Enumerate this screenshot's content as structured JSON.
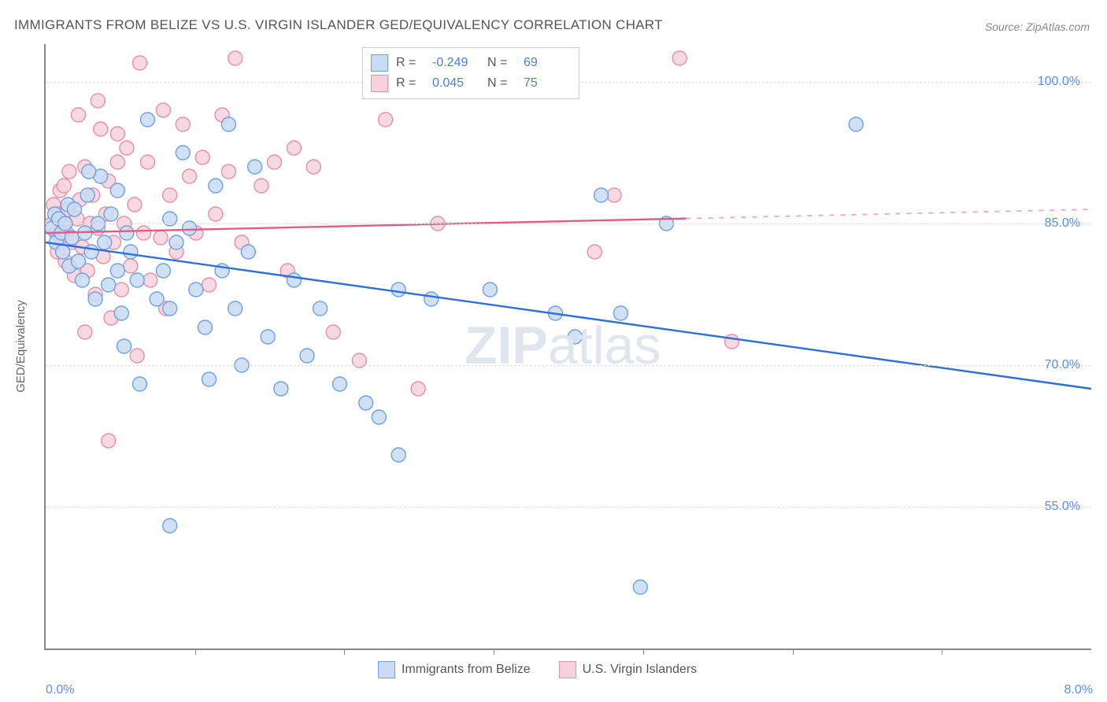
{
  "title": "IMMIGRANTS FROM BELIZE VS U.S. VIRGIN ISLANDER GED/EQUIVALENCY CORRELATION CHART",
  "source_label": "Source: ZipAtlas.com",
  "y_axis_label": "GED/Equivalency",
  "watermark": {
    "bold": "ZIP",
    "rest": "atlas"
  },
  "chart": {
    "type": "scatter-with-regression",
    "background_color": "#ffffff",
    "grid_color": "#dddddd",
    "axis_color": "#888888",
    "xlim": [
      0.0,
      8.0
    ],
    "ylim": [
      40.0,
      104.0
    ],
    "x_ticks_minor_count": 6,
    "x_tick_labels": {
      "left": "0.0%",
      "right": "8.0%"
    },
    "y_ticks": [
      {
        "value": 55.0,
        "label": "55.0%"
      },
      {
        "value": 70.0,
        "label": "70.0%"
      },
      {
        "value": 85.0,
        "label": "85.0%"
      },
      {
        "value": 100.0,
        "label": "100.0%"
      }
    ],
    "marker_radius": 9,
    "marker_stroke_width": 1.4,
    "line_width": 2.4,
    "series": [
      {
        "key": "belize",
        "label": "Immigrants from Belize",
        "fill": "#c9dcf3",
        "stroke": "#6fa0e2",
        "line_color": "#2f6fd9",
        "r_value": "-0.249",
        "n_value": "69",
        "regression": {
          "x1": 0.0,
          "y1": 83.0,
          "x2": 8.0,
          "y2": 67.5,
          "solid_until_x": 8.0
        },
        "points": [
          [
            0.05,
            84.5
          ],
          [
            0.07,
            86.0
          ],
          [
            0.08,
            83.0
          ],
          [
            0.1,
            85.5
          ],
          [
            0.12,
            84.0
          ],
          [
            0.13,
            82.0
          ],
          [
            0.15,
            85.0
          ],
          [
            0.17,
            87.0
          ],
          [
            0.18,
            80.5
          ],
          [
            0.2,
            83.5
          ],
          [
            0.22,
            86.5
          ],
          [
            0.25,
            81.0
          ],
          [
            0.28,
            79.0
          ],
          [
            0.3,
            84.0
          ],
          [
            0.32,
            88.0
          ],
          [
            0.35,
            82.0
          ],
          [
            0.38,
            77.0
          ],
          [
            0.4,
            85.0
          ],
          [
            0.42,
            90.0
          ],
          [
            0.45,
            83.0
          ],
          [
            0.48,
            78.5
          ],
          [
            0.5,
            86.0
          ],
          [
            0.55,
            80.0
          ],
          [
            0.58,
            75.5
          ],
          [
            0.62,
            84.0
          ],
          [
            0.65,
            82.0
          ],
          [
            0.7,
            79.0
          ],
          [
            0.78,
            96.0
          ],
          [
            0.72,
            68.0
          ],
          [
            0.85,
            77.0
          ],
          [
            0.9,
            80.0
          ],
          [
            0.95,
            76.0
          ],
          [
            1.0,
            83.0
          ],
          [
            1.05,
            92.5
          ],
          [
            0.95,
            53.0
          ],
          [
            1.15,
            78.0
          ],
          [
            1.22,
            74.0
          ],
          [
            1.3,
            89.0
          ],
          [
            1.35,
            80.0
          ],
          [
            1.4,
            95.5
          ],
          [
            1.45,
            76.0
          ],
          [
            1.5,
            70.0
          ],
          [
            1.55,
            82.0
          ],
          [
            1.6,
            91.0
          ],
          [
            1.7,
            73.0
          ],
          [
            1.8,
            67.5
          ],
          [
            1.9,
            79.0
          ],
          [
            2.0,
            71.0
          ],
          [
            2.1,
            76.0
          ],
          [
            2.25,
            68.0
          ],
          [
            2.45,
            66.0
          ],
          [
            2.55,
            64.5
          ],
          [
            2.7,
            78.0
          ],
          [
            2.7,
            60.5
          ],
          [
            2.95,
            77.0
          ],
          [
            3.4,
            78.0
          ],
          [
            3.9,
            75.5
          ],
          [
            4.05,
            73.0
          ],
          [
            4.25,
            88.0
          ],
          [
            4.4,
            75.5
          ],
          [
            4.55,
            46.5
          ],
          [
            6.2,
            95.5
          ],
          [
            4.75,
            85.0
          ],
          [
            0.33,
            90.5
          ],
          [
            0.55,
            88.5
          ],
          [
            0.6,
            72.0
          ],
          [
            1.1,
            84.5
          ],
          [
            1.25,
            68.5
          ],
          [
            0.95,
            85.5
          ]
        ]
      },
      {
        "key": "usvi",
        "label": "U.S. Virgin Islanders",
        "fill": "#f6d3dc",
        "stroke": "#e88fa6",
        "line_color": "#e05c87",
        "r_value": "0.045",
        "n_value": "75",
        "regression": {
          "x1": 0.0,
          "y1": 84.0,
          "x2": 8.0,
          "y2": 86.5,
          "solid_until_x": 4.9
        },
        "points": [
          [
            0.05,
            85.0
          ],
          [
            0.06,
            87.0
          ],
          [
            0.08,
            84.0
          ],
          [
            0.09,
            82.0
          ],
          [
            0.1,
            86.0
          ],
          [
            0.11,
            88.5
          ],
          [
            0.12,
            83.5
          ],
          [
            0.13,
            85.0
          ],
          [
            0.14,
            89.0
          ],
          [
            0.15,
            81.0
          ],
          [
            0.16,
            84.0
          ],
          [
            0.17,
            86.5
          ],
          [
            0.18,
            90.5
          ],
          [
            0.2,
            83.0
          ],
          [
            0.22,
            79.5
          ],
          [
            0.24,
            85.5
          ],
          [
            0.26,
            87.5
          ],
          [
            0.28,
            82.5
          ],
          [
            0.3,
            91.0
          ],
          [
            0.32,
            80.0
          ],
          [
            0.34,
            85.0
          ],
          [
            0.36,
            88.0
          ],
          [
            0.38,
            77.5
          ],
          [
            0.4,
            84.5
          ],
          [
            0.42,
            95.0
          ],
          [
            0.44,
            81.5
          ],
          [
            0.46,
            86.0
          ],
          [
            0.48,
            89.5
          ],
          [
            0.5,
            75.0
          ],
          [
            0.52,
            83.0
          ],
          [
            0.55,
            94.5
          ],
          [
            0.58,
            78.0
          ],
          [
            0.6,
            85.0
          ],
          [
            0.62,
            93.0
          ],
          [
            0.65,
            80.5
          ],
          [
            0.68,
            87.0
          ],
          [
            0.48,
            62.0
          ],
          [
            0.75,
            84.0
          ],
          [
            0.78,
            91.5
          ],
          [
            0.8,
            79.0
          ],
          [
            0.72,
            102.0
          ],
          [
            0.88,
            83.5
          ],
          [
            0.92,
            76.0
          ],
          [
            0.95,
            88.0
          ],
          [
            1.0,
            82.0
          ],
          [
            1.05,
            95.5
          ],
          [
            1.1,
            90.0
          ],
          [
            1.15,
            84.0
          ],
          [
            1.2,
            92.0
          ],
          [
            1.25,
            78.5
          ],
          [
            1.3,
            86.0
          ],
          [
            1.4,
            90.5
          ],
          [
            1.5,
            83.0
          ],
          [
            1.45,
            102.5
          ],
          [
            1.65,
            89.0
          ],
          [
            1.75,
            91.5
          ],
          [
            1.85,
            80.0
          ],
          [
            1.9,
            93.0
          ],
          [
            2.05,
            91.0
          ],
          [
            2.2,
            73.5
          ],
          [
            2.4,
            70.5
          ],
          [
            2.6,
            96.0
          ],
          [
            2.85,
            67.5
          ],
          [
            3.0,
            85.0
          ],
          [
            4.2,
            82.0
          ],
          [
            4.35,
            88.0
          ],
          [
            4.85,
            102.5
          ],
          [
            5.25,
            72.5
          ],
          [
            0.3,
            73.5
          ],
          [
            0.7,
            71.0
          ],
          [
            0.55,
            91.5
          ],
          [
            0.4,
            98.0
          ],
          [
            0.9,
            97.0
          ],
          [
            1.35,
            96.5
          ],
          [
            0.25,
            96.5
          ]
        ]
      }
    ],
    "legend_top_labels": {
      "r": "R =",
      "n": "N ="
    },
    "legend_bottom": [
      {
        "series": "belize"
      },
      {
        "series": "usvi"
      }
    ]
  }
}
